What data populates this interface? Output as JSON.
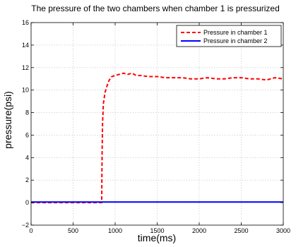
{
  "chart_data": {
    "type": "line",
    "title": "The pressure of the two chambers when chamber 1 is pressurized",
    "xlabel": "time(ms)",
    "ylabel": "pressure(psi)",
    "xlim": [
      0,
      3000
    ],
    "ylim": [
      -2,
      16
    ],
    "xticks": [
      0,
      500,
      1000,
      1500,
      2000,
      2500,
      3000
    ],
    "yticks": [
      -2,
      0,
      2,
      4,
      6,
      8,
      10,
      12,
      14,
      16
    ],
    "grid": true,
    "legend_position": "top-right",
    "series": [
      {
        "name": "Pressure in chamber 1",
        "color": "#ff0000",
        "style": "dashed",
        "x": [
          0,
          840,
          842,
          845,
          850,
          860,
          870,
          880,
          900,
          930,
          960,
          1000,
          1050,
          1100,
          1150,
          1200,
          1250,
          1300,
          1400,
          1500,
          1600,
          1700,
          1800,
          1900,
          2000,
          2100,
          2200,
          2300,
          2400,
          2500,
          2600,
          2700,
          2800,
          2900,
          3000
        ],
        "y": [
          0,
          0,
          2.0,
          4.5,
          7.0,
          8.8,
          9.3,
          9.8,
          10.3,
          10.9,
          11.2,
          11.3,
          11.4,
          11.5,
          11.4,
          11.5,
          11.3,
          11.3,
          11.2,
          11.2,
          11.1,
          11.1,
          11.1,
          11.0,
          11.0,
          11.1,
          11.0,
          11.0,
          11.1,
          11.1,
          11.0,
          11.0,
          10.9,
          11.1,
          11.0
        ]
      },
      {
        "name": "Pressure in chamber 2",
        "color": "#0000ff",
        "style": "solid",
        "x": [
          0,
          500,
          1000,
          1500,
          2000,
          2500,
          3000
        ],
        "y": [
          0.05,
          0.05,
          0.05,
          0.05,
          0.05,
          0.05,
          0.05
        ]
      }
    ]
  }
}
